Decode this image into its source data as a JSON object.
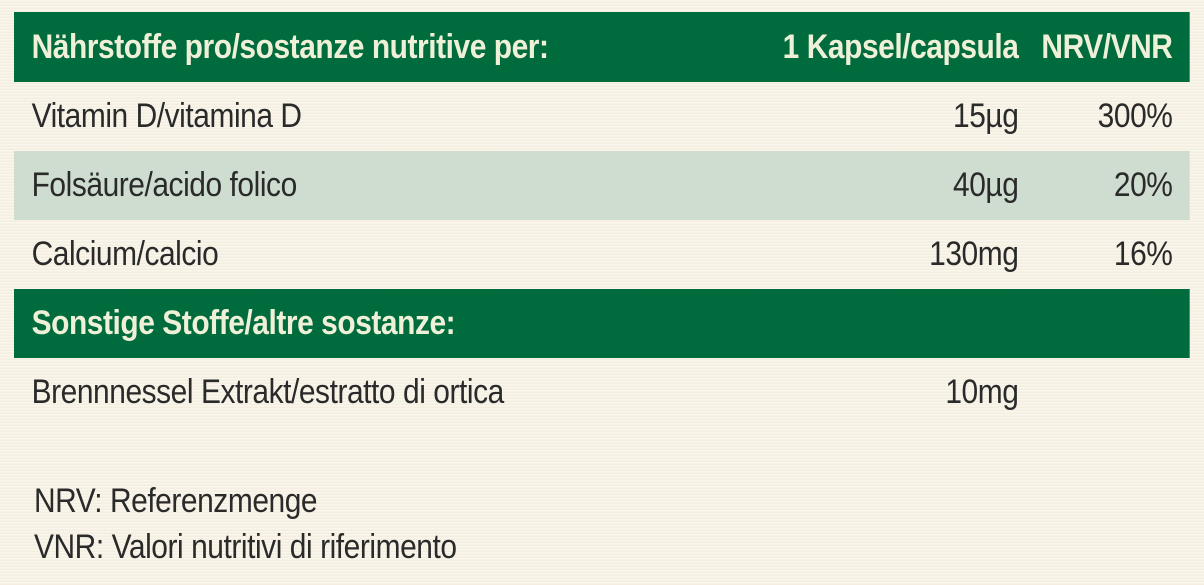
{
  "header": {
    "nutrient_label": "Nährstoffe pro/sostanze nutritive per:",
    "amount_label": "1 Kapsel/capsula",
    "nrv_label": "NRV/VNR"
  },
  "nutrients": [
    {
      "name": "Vitamin D/vitamina D",
      "amount": "15µg",
      "nrv": "300%"
    },
    {
      "name": "Folsäure/acido folico",
      "amount": "40µg",
      "nrv": "20%"
    },
    {
      "name": "Calcium/calcio",
      "amount": "130mg",
      "nrv": "16%"
    }
  ],
  "other_header": {
    "label": "Sonstige Stoffe/altre sostanze:"
  },
  "other": [
    {
      "name": "Brennnessel Extrakt/estratto di ortica",
      "amount": "10mg"
    }
  ],
  "notes": [
    "NRV: Referenzmenge",
    "VNR: Valori nutritivi di riferimento"
  ],
  "colors": {
    "header_bg": "#006b3c",
    "header_text": "#eef0d8",
    "shaded_row": "#cfddd0",
    "background": "#f7f2e3"
  }
}
